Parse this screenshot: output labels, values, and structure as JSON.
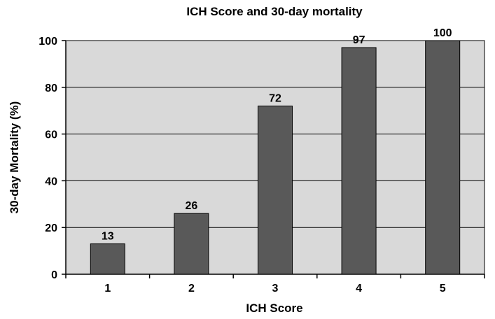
{
  "chart_data": {
    "type": "bar",
    "title": "ICH Score and 30-day mortality",
    "xlabel": "ICH Score",
    "ylabel": "30-day Mortality (%)",
    "categories": [
      "1",
      "2",
      "3",
      "4",
      "5"
    ],
    "values": [
      13,
      26,
      72,
      97,
      100
    ],
    "data_labels": [
      "13",
      "26",
      "72",
      "97",
      "100"
    ],
    "ylim": [
      0,
      100
    ],
    "yticks": [
      0,
      20,
      40,
      60,
      80,
      100
    ],
    "ytick_labels": [
      "0",
      "20",
      "40",
      "60",
      "80",
      "100"
    ],
    "grid": true,
    "legend": "none",
    "colors": {
      "bar": "#595959",
      "plot_background": "#d9d9d9",
      "gridline": "#000000"
    }
  }
}
